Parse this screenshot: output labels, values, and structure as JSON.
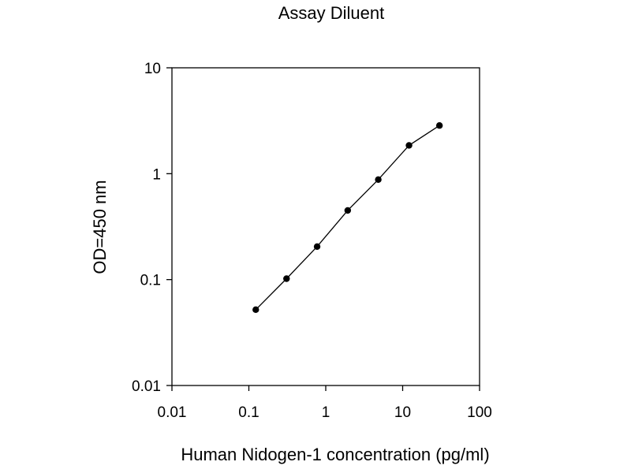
{
  "chart_data": {
    "type": "line",
    "title": "Assay Diluent",
    "xlabel": "Human Nidogen-1 concentration (pg/ml)",
    "ylabel": "OD=450 nm",
    "x_scale": "log",
    "y_scale": "log",
    "xlim": [
      0.01,
      100
    ],
    "ylim": [
      0.01,
      10
    ],
    "x_ticks": [
      "0.01",
      "0.1",
      "1",
      "10",
      "100"
    ],
    "y_ticks": [
      "0.01",
      "0.1",
      "1",
      "10"
    ],
    "grid": false,
    "legend": "none",
    "series": [
      {
        "x": [
          0.123,
          0.309,
          0.772,
          1.93,
          4.82,
          12.1,
          30.1
        ],
        "y": [
          0.052,
          0.102,
          0.205,
          0.45,
          0.88,
          1.85,
          2.85
        ]
      }
    ],
    "colors": {
      "line": "#000000",
      "marker": "#000000",
      "axis": "#000000"
    }
  }
}
